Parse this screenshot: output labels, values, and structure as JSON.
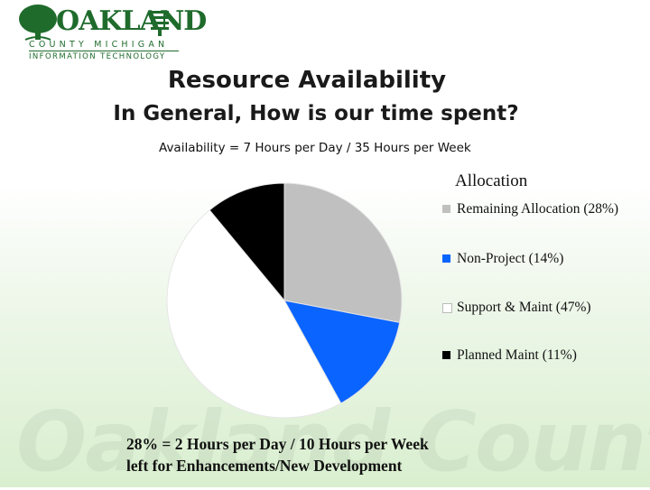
{
  "logo": {
    "name": "OAKLAND",
    "line1": "COUNTY MICHIGAN",
    "line2": "INFORMATION TECHNOLOGY"
  },
  "watermark": "Oakland County",
  "header": {
    "title": "Resource Availability",
    "subtitle": "In General, How is our time spent?",
    "availability": "Availability = 7 Hours per Day / 35 Hours per Week"
  },
  "chart_data": {
    "type": "pie",
    "legend_title": "Allocation",
    "legend_position": "right",
    "slices": [
      {
        "label": "Remaining Allocation (28%)",
        "value": 28,
        "color": "#c0c0c0"
      },
      {
        "label": "Non-Project (14%)",
        "value": 14,
        "color": "#0a64ff"
      },
      {
        "label": "Support & Maint (47%)",
        "value": 47,
        "color": "#ffffff"
      },
      {
        "label": "Planned Maint (11%)",
        "value": 11,
        "color": "#000000"
      }
    ]
  },
  "footnote": {
    "line1": "28% = 2 Hours per Day / 10 Hours per Week",
    "line2": "left for Enhancements/New Development"
  }
}
